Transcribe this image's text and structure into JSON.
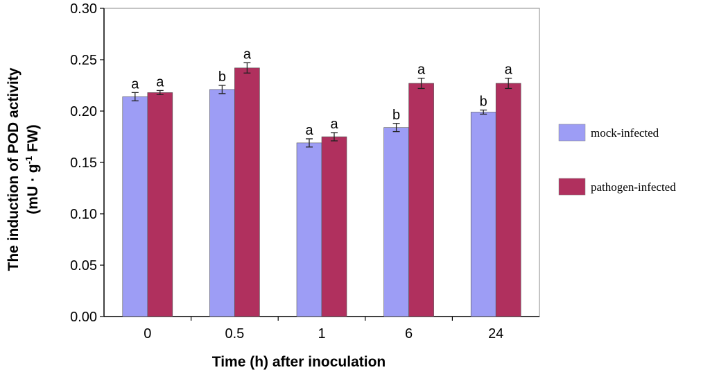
{
  "chart_data": {
    "type": "bar",
    "categories": [
      "0",
      "0.5",
      "1",
      "6",
      "24"
    ],
    "series": [
      {
        "name": "mock-infected",
        "color": "#9d9df5",
        "values": [
          0.214,
          0.221,
          0.169,
          0.184,
          0.199
        ],
        "errors": [
          0.004,
          0.004,
          0.004,
          0.004,
          0.002
        ],
        "significance": [
          "a",
          "b",
          "a",
          "b",
          "b"
        ]
      },
      {
        "name": "pathogen-infected",
        "color": "#b0305e",
        "values": [
          0.218,
          0.242,
          0.175,
          0.227,
          0.227
        ],
        "errors": [
          0.002,
          0.005,
          0.004,
          0.005,
          0.005
        ],
        "significance": [
          "a",
          "a",
          "a",
          "a",
          "a"
        ]
      }
    ],
    "xlabel": "Time (h) after inoculation",
    "ylabel_line1": "The induction of POD activity",
    "ylabel_line2_prefix": "(mU · g",
    "ylabel_superscript": "-1",
    "ylabel_line2_suffix": " FW)",
    "ylim": [
      0,
      0.3
    ],
    "yticks": [
      "0.00",
      "0.05",
      "0.10",
      "0.15",
      "0.20",
      "0.25",
      "0.30"
    ],
    "legend_position": "right"
  }
}
